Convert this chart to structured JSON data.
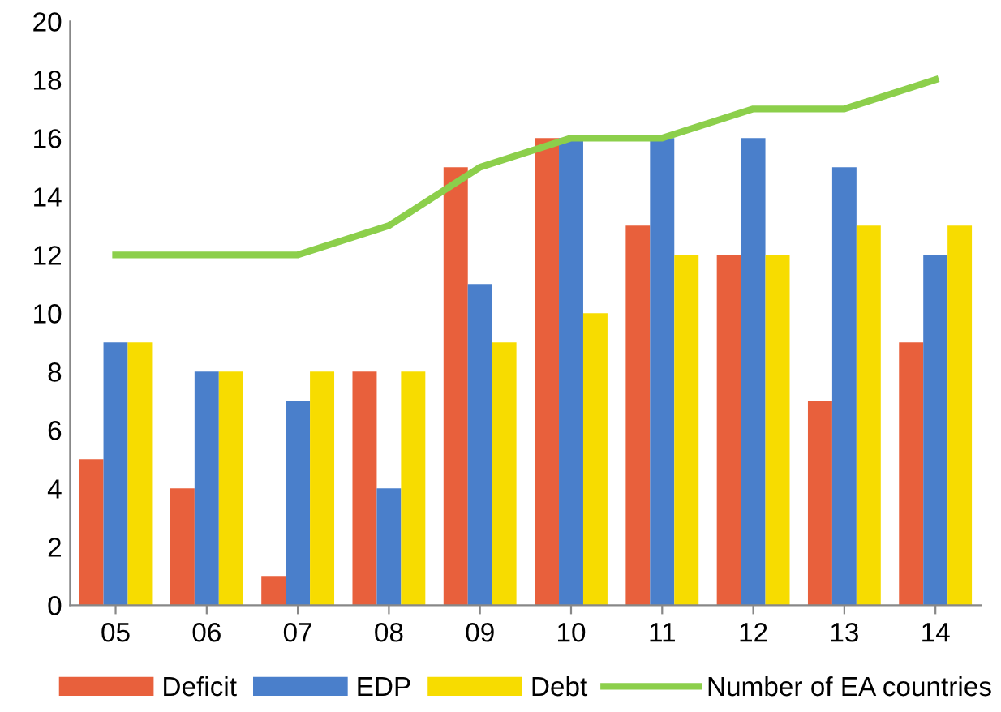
{
  "chart_data": {
    "type": "bar",
    "categories": [
      "05",
      "06",
      "07",
      "08",
      "09",
      "10",
      "11",
      "12",
      "13",
      "14"
    ],
    "series": [
      {
        "name": "Deficit",
        "color": "#e8603c",
        "values": [
          5,
          4,
          1,
          8,
          15,
          16,
          13,
          12,
          7,
          9
        ]
      },
      {
        "name": "EDP",
        "color": "#4a7fcb",
        "values": [
          9,
          8,
          7,
          4,
          11,
          16,
          16,
          16,
          15,
          12
        ]
      },
      {
        "name": "Debt",
        "color": "#f7dc00",
        "values": [
          9,
          8,
          8,
          8,
          9,
          10,
          12,
          12,
          13,
          13
        ]
      },
      {
        "name": "Number of EA countries",
        "type": "line",
        "color": "#8ccf4b",
        "values": [
          12,
          12,
          12,
          13,
          15,
          16,
          16,
          17,
          17,
          18
        ]
      }
    ],
    "ylim": [
      0,
      20
    ],
    "yticks": [
      0,
      2,
      4,
      6,
      8,
      10,
      12,
      14,
      16,
      18,
      20
    ],
    "grid": false,
    "legend": "bottom",
    "marker": "none",
    "line_style": "solid"
  }
}
